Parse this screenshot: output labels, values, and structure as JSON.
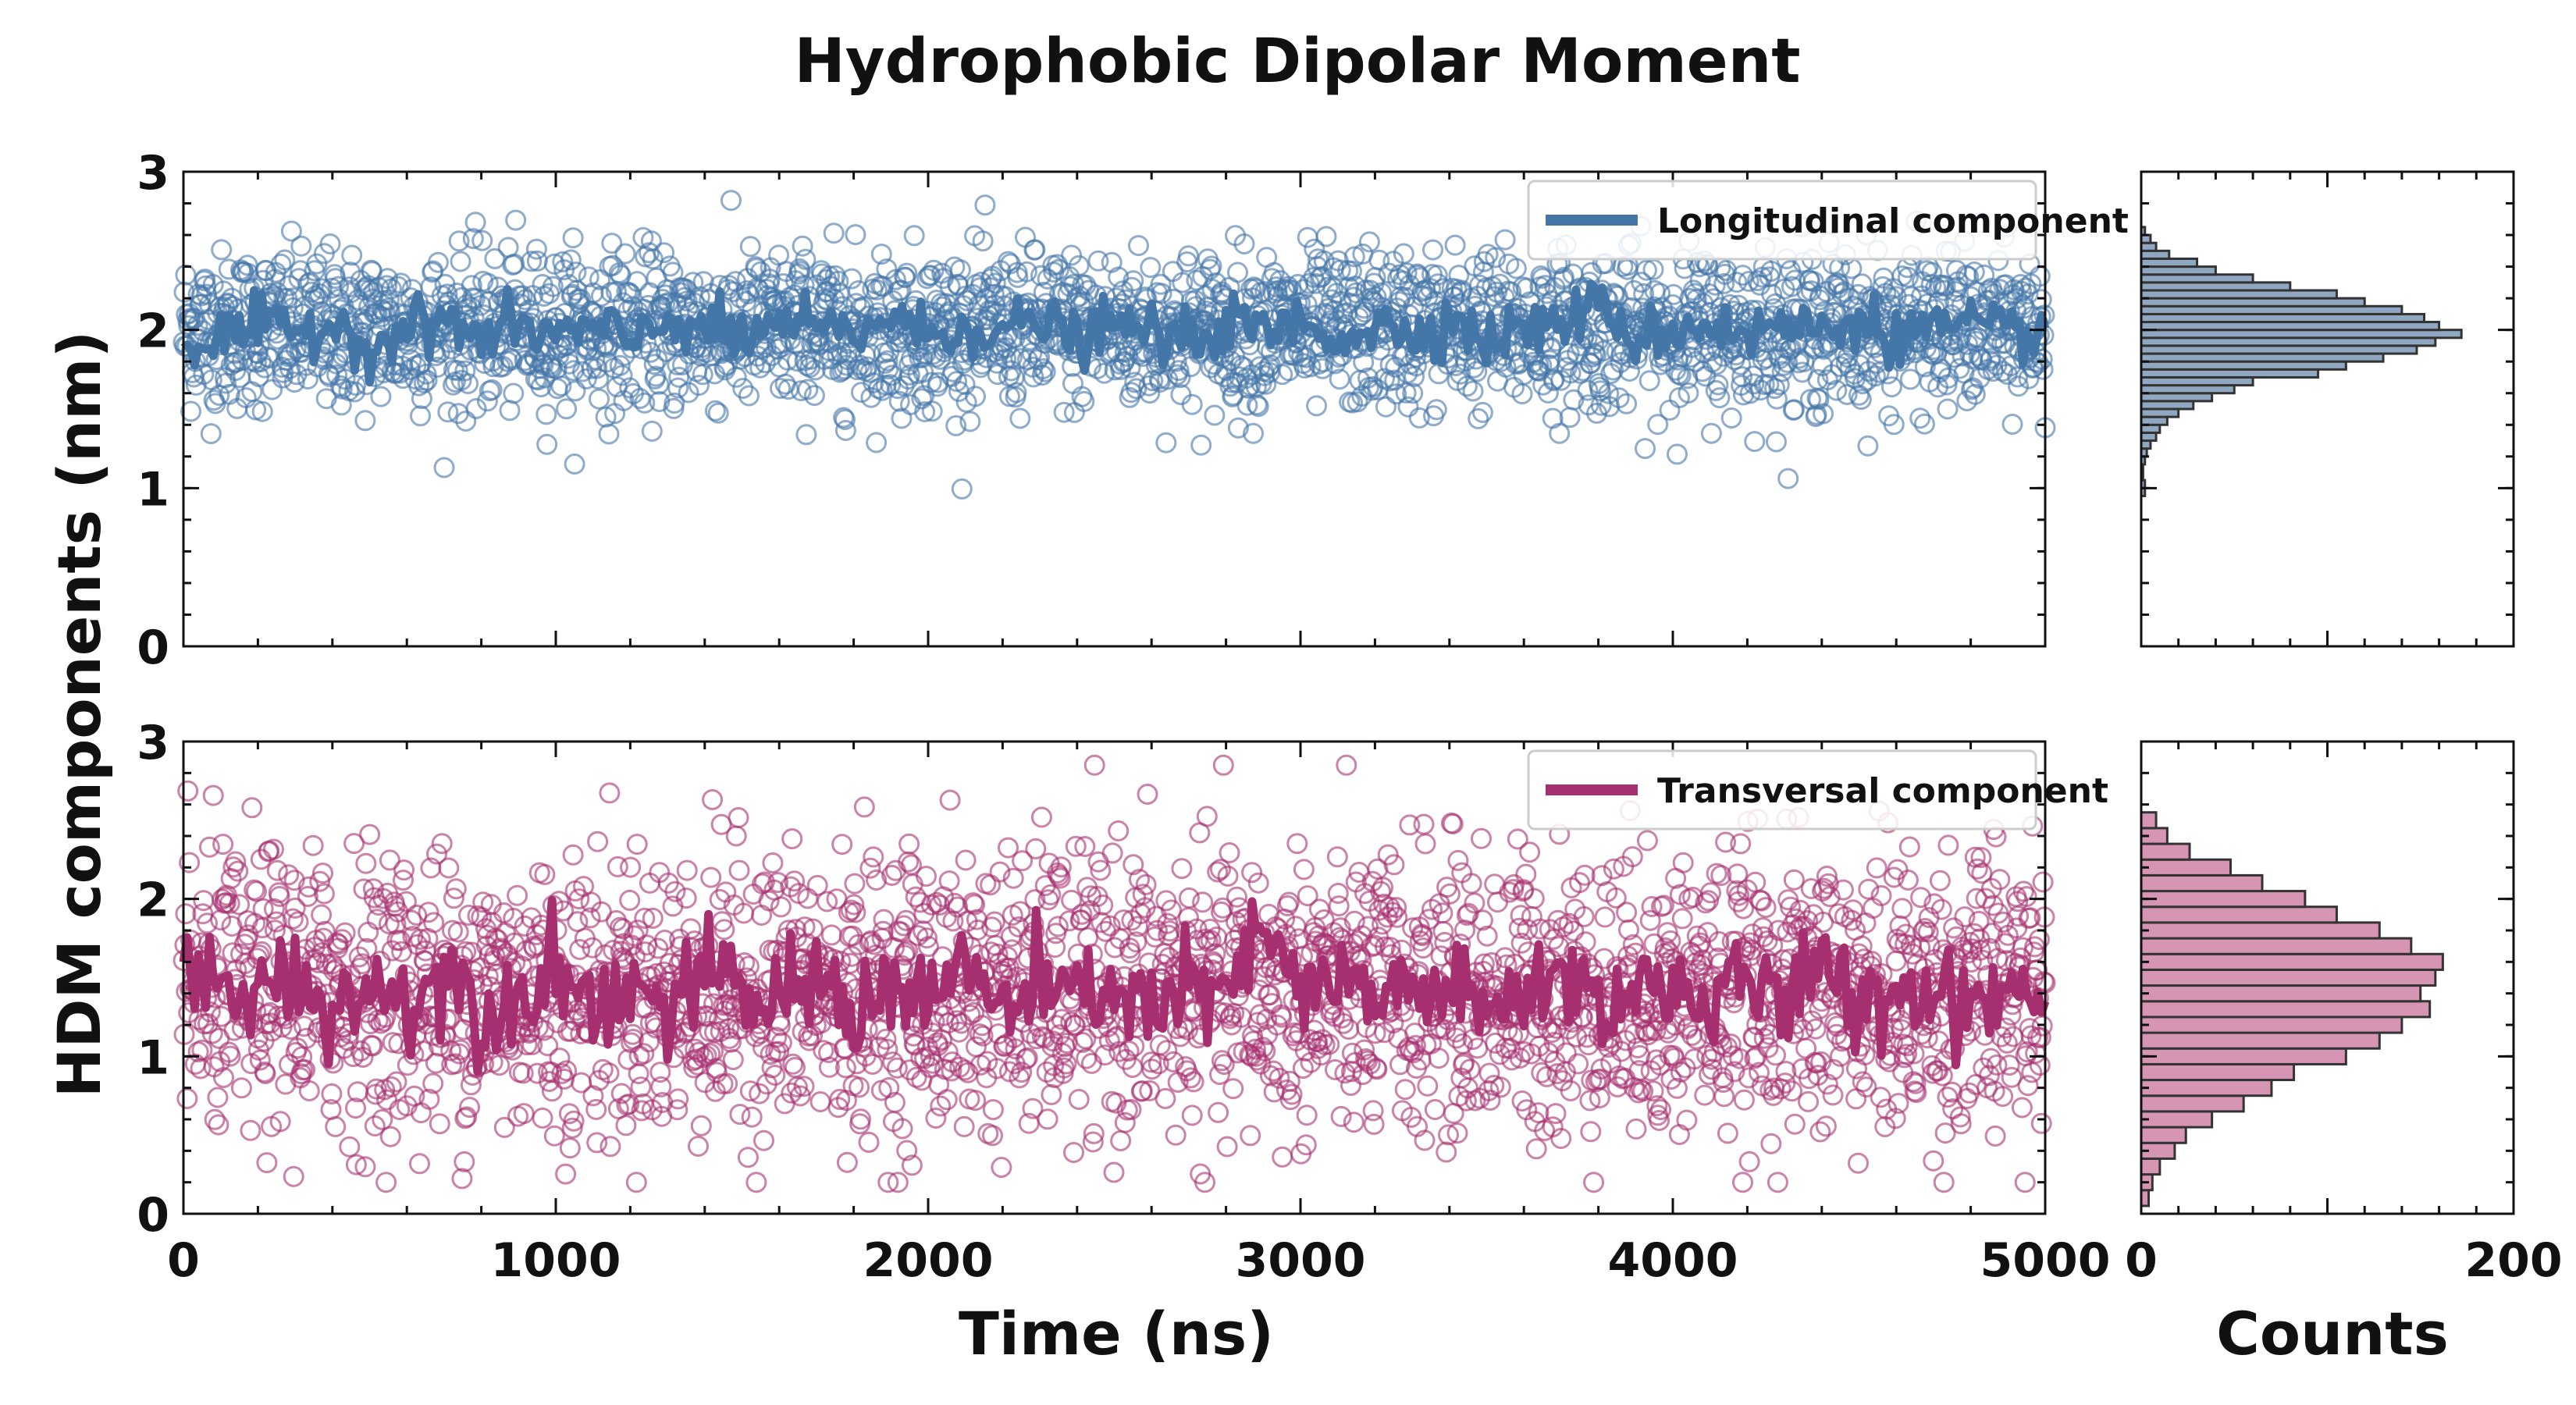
{
  "colors": {
    "longitudinal": "#4576a8",
    "transversal": "#a6306f",
    "long_hist_fill": "#8fa7c1",
    "trans_hist_fill": "#d795b4",
    "axis": "#111111"
  },
  "figure": {
    "title": "Hydrophobic Dipolar Moment",
    "ylabel": "HDM components (nm)",
    "xlabel": "Time (ns)",
    "hist_xlabel": "Counts"
  },
  "chart_data": [
    {
      "type": "scatter",
      "panel": "top-time-series",
      "series": [
        {
          "name": "Longitudinal component",
          "kind": "scatter",
          "mean": 2.0,
          "spread": 0.25,
          "n_points": 2500,
          "marker": "open-circle"
        },
        {
          "name": "Longitudinal component",
          "kind": "line",
          "x": [
            0,
            100,
            200,
            300,
            400,
            500,
            600,
            700,
            800,
            900,
            1000,
            1100,
            1200,
            1300,
            1400,
            1500,
            1600,
            1700,
            1800,
            1900,
            2000,
            2100,
            2200,
            2300,
            2400,
            2500,
            2600,
            2700,
            2800,
            2900,
            3000,
            3100,
            3200,
            3300,
            3400,
            3500,
            3600,
            3700,
            3800,
            3900,
            4000,
            4100,
            4200,
            4300,
            4400,
            4500,
            4600,
            4700,
            4800,
            4900,
            5000
          ],
          "y": [
            1.88,
            1.95,
            2.02,
            1.98,
            2.05,
            1.9,
            2.0,
            2.08,
            1.94,
            2.03,
            1.96,
            2.01,
            1.92,
            2.07,
            2.02,
            1.93,
            2.05,
            2.0,
            1.97,
            2.1,
            1.95,
            2.03,
            1.99,
            2.06,
            1.94,
            2.02,
            2.0,
            1.91,
            2.05,
            1.98,
            2.04,
            1.96,
            2.02,
            1.99,
            2.07,
            1.93,
            2.01,
            2.05,
            2.15,
            1.95,
            2.0,
            2.04,
            1.97,
            2.03,
            1.99,
            2.08,
            1.96,
            2.02,
            2.0,
            1.98,
            2.01
          ]
        }
      ],
      "xlim": [
        0,
        5000
      ],
      "ylim": [
        0,
        3
      ],
      "y_ticks": [
        0,
        1,
        2,
        3
      ],
      "legend": "top-right",
      "grid": false
    },
    {
      "type": "scatter",
      "panel": "bottom-time-series",
      "series": [
        {
          "name": "Transversal component",
          "kind": "scatter",
          "mean": 1.4,
          "spread": 0.45,
          "n_points": 2500,
          "marker": "open-circle"
        },
        {
          "name": "Transversal component",
          "kind": "line",
          "x": [
            0,
            100,
            200,
            300,
            400,
            500,
            600,
            700,
            800,
            900,
            1000,
            1100,
            1200,
            1300,
            1400,
            1500,
            1600,
            1700,
            1800,
            1900,
            2000,
            2100,
            2200,
            2300,
            2400,
            2500,
            2600,
            2700,
            2800,
            2900,
            3000,
            3100,
            3200,
            3300,
            3400,
            3500,
            3600,
            3700,
            3800,
            3900,
            4000,
            4100,
            4200,
            4300,
            4400,
            4500,
            4600,
            4700,
            4800,
            4900,
            5000
          ],
          "y": [
            1.5,
            1.45,
            1.38,
            1.52,
            1.3,
            1.44,
            1.36,
            1.55,
            1.28,
            1.42,
            1.58,
            1.34,
            1.46,
            1.3,
            1.5,
            1.4,
            1.35,
            1.48,
            1.32,
            1.45,
            1.38,
            1.55,
            1.3,
            1.42,
            1.36,
            1.48,
            1.28,
            1.44,
            1.35,
            1.8,
            1.4,
            1.46,
            1.32,
            1.5,
            1.38,
            1.25,
            1.44,
            1.52,
            1.36,
            1.42,
            1.48,
            1.3,
            1.46,
            1.38,
            1.52,
            1.34,
            1.44,
            1.4,
            1.36,
            1.48,
            1.35
          ]
        }
      ],
      "xlim": [
        0,
        5000
      ],
      "ylim": [
        0,
        3
      ],
      "xlabel": "Time (ns)",
      "x_ticks": [
        0,
        1000,
        2000,
        3000,
        4000,
        5000
      ],
      "y_ticks": [
        0,
        1,
        2,
        3
      ],
      "legend": "top-right",
      "grid": false
    },
    {
      "type": "bar",
      "panel": "top-histogram",
      "orientation": "horizontal",
      "series": [
        {
          "name": "Longitudinal component"
        }
      ],
      "bin_width": 0.05,
      "bins": [
        0.95,
        1.0,
        1.05,
        1.1,
        1.15,
        1.2,
        1.25,
        1.3,
        1.35,
        1.4,
        1.45,
        1.5,
        1.55,
        1.6,
        1.65,
        1.7,
        1.75,
        1.8,
        1.85,
        1.9,
        1.95,
        2.0,
        2.05,
        2.1,
        2.15,
        2.2,
        2.25,
        2.3,
        2.35,
        2.4,
        2.45,
        2.5,
        2.55,
        2.6
      ],
      "counts": [
        2,
        2,
        1,
        1,
        2,
        3,
        5,
        8,
        10,
        14,
        20,
        28,
        38,
        50,
        60,
        95,
        110,
        130,
        148,
        158,
        172,
        160,
        152,
        140,
        120,
        105,
        80,
        60,
        40,
        30,
        15,
        8,
        5,
        2
      ],
      "xlim": [
        0,
        200
      ],
      "ylim": [
        0,
        3
      ],
      "x_ticks": [
        0,
        200
      ]
    },
    {
      "type": "bar",
      "panel": "bottom-histogram",
      "orientation": "horizontal",
      "series": [
        {
          "name": "Transversal component"
        }
      ],
      "bin_width": 0.1,
      "bins": [
        0.05,
        0.15,
        0.25,
        0.35,
        0.45,
        0.55,
        0.65,
        0.75,
        0.85,
        0.95,
        1.05,
        1.15,
        1.25,
        1.35,
        1.45,
        1.55,
        1.65,
        1.75,
        1.85,
        1.95,
        2.05,
        2.15,
        2.25,
        2.35,
        2.45
      ],
      "counts": [
        4,
        6,
        10,
        18,
        24,
        38,
        55,
        70,
        82,
        110,
        128,
        140,
        155,
        150,
        158,
        162,
        145,
        128,
        105,
        88,
        65,
        48,
        26,
        14,
        8
      ],
      "xlim": [
        0,
        200
      ],
      "ylim": [
        0,
        3
      ],
      "xlabel": "Counts",
      "x_ticks": [
        0,
        200
      ]
    }
  ]
}
